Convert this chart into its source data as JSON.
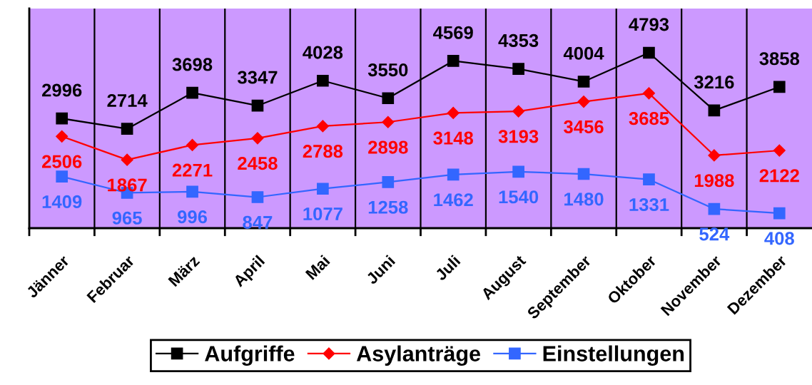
{
  "chart_data": {
    "type": "line",
    "categories": [
      "Jänner",
      "Februar",
      "März",
      "April",
      "Mai",
      "Juni",
      "Juli",
      "August",
      "September",
      "Oktober",
      "November",
      "Dezember"
    ],
    "series": [
      {
        "name": "Aufgriffe",
        "color": "#000000",
        "marker": "square",
        "values": [
          2996,
          2714,
          3698,
          3347,
          4028,
          3550,
          4569,
          4353,
          4004,
          4793,
          3216,
          3858
        ]
      },
      {
        "name": "Asylanträge",
        "color": "#ff0000",
        "marker": "diamond",
        "values": [
          2506,
          1867,
          2271,
          2458,
          2788,
          2898,
          3148,
          3193,
          3456,
          3685,
          1988,
          2122
        ]
      },
      {
        "name": "Einstellungen",
        "color": "#3366ff",
        "marker": "square",
        "values": [
          1409,
          965,
          996,
          847,
          1077,
          1258,
          1462,
          1540,
          1480,
          1331,
          524,
          408
        ]
      }
    ],
    "ylim": [
      0,
      6000
    ],
    "tick_labels": "x",
    "grid": "x",
    "legend": "bottom",
    "data_labels": true,
    "line_style": "solid"
  }
}
